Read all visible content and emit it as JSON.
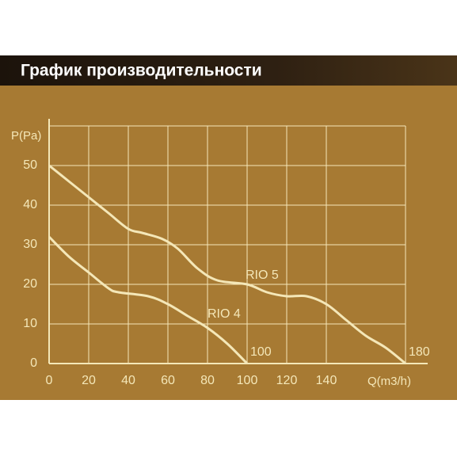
{
  "chart_data": {
    "type": "line",
    "title": "График производительности",
    "x_label": "Q(m3/h)",
    "y_label": "P(Pa)",
    "xlim": [
      0,
      180
    ],
    "xticks": [
      0,
      20,
      40,
      60,
      80,
      100,
      120,
      140
    ],
    "ylim": [
      0,
      60
    ],
    "yticks": [
      0,
      10,
      20,
      30,
      40,
      50
    ],
    "grid": true,
    "series": [
      {
        "name": "RIO 4",
        "color": "#f4e7b8",
        "end_label": "100",
        "x": [
          0,
          10,
          20,
          30,
          35,
          50,
          60,
          70,
          80,
          90,
          100
        ],
        "values": [
          32,
          27,
          23,
          19,
          18,
          17,
          15,
          12,
          9,
          5,
          0
        ]
      },
      {
        "name": "RIO 5",
        "color": "#f4e7b8",
        "end_label": "180",
        "x": [
          0,
          10,
          20,
          30,
          40,
          47,
          57,
          65,
          75,
          85,
          100,
          110,
          120,
          130,
          140,
          150,
          160,
          170,
          180
        ],
        "values": [
          50,
          46,
          42,
          38,
          34,
          33,
          31.5,
          29,
          24,
          21,
          20,
          18,
          17,
          17,
          15,
          11,
          7,
          4,
          0
        ]
      }
    ]
  }
}
